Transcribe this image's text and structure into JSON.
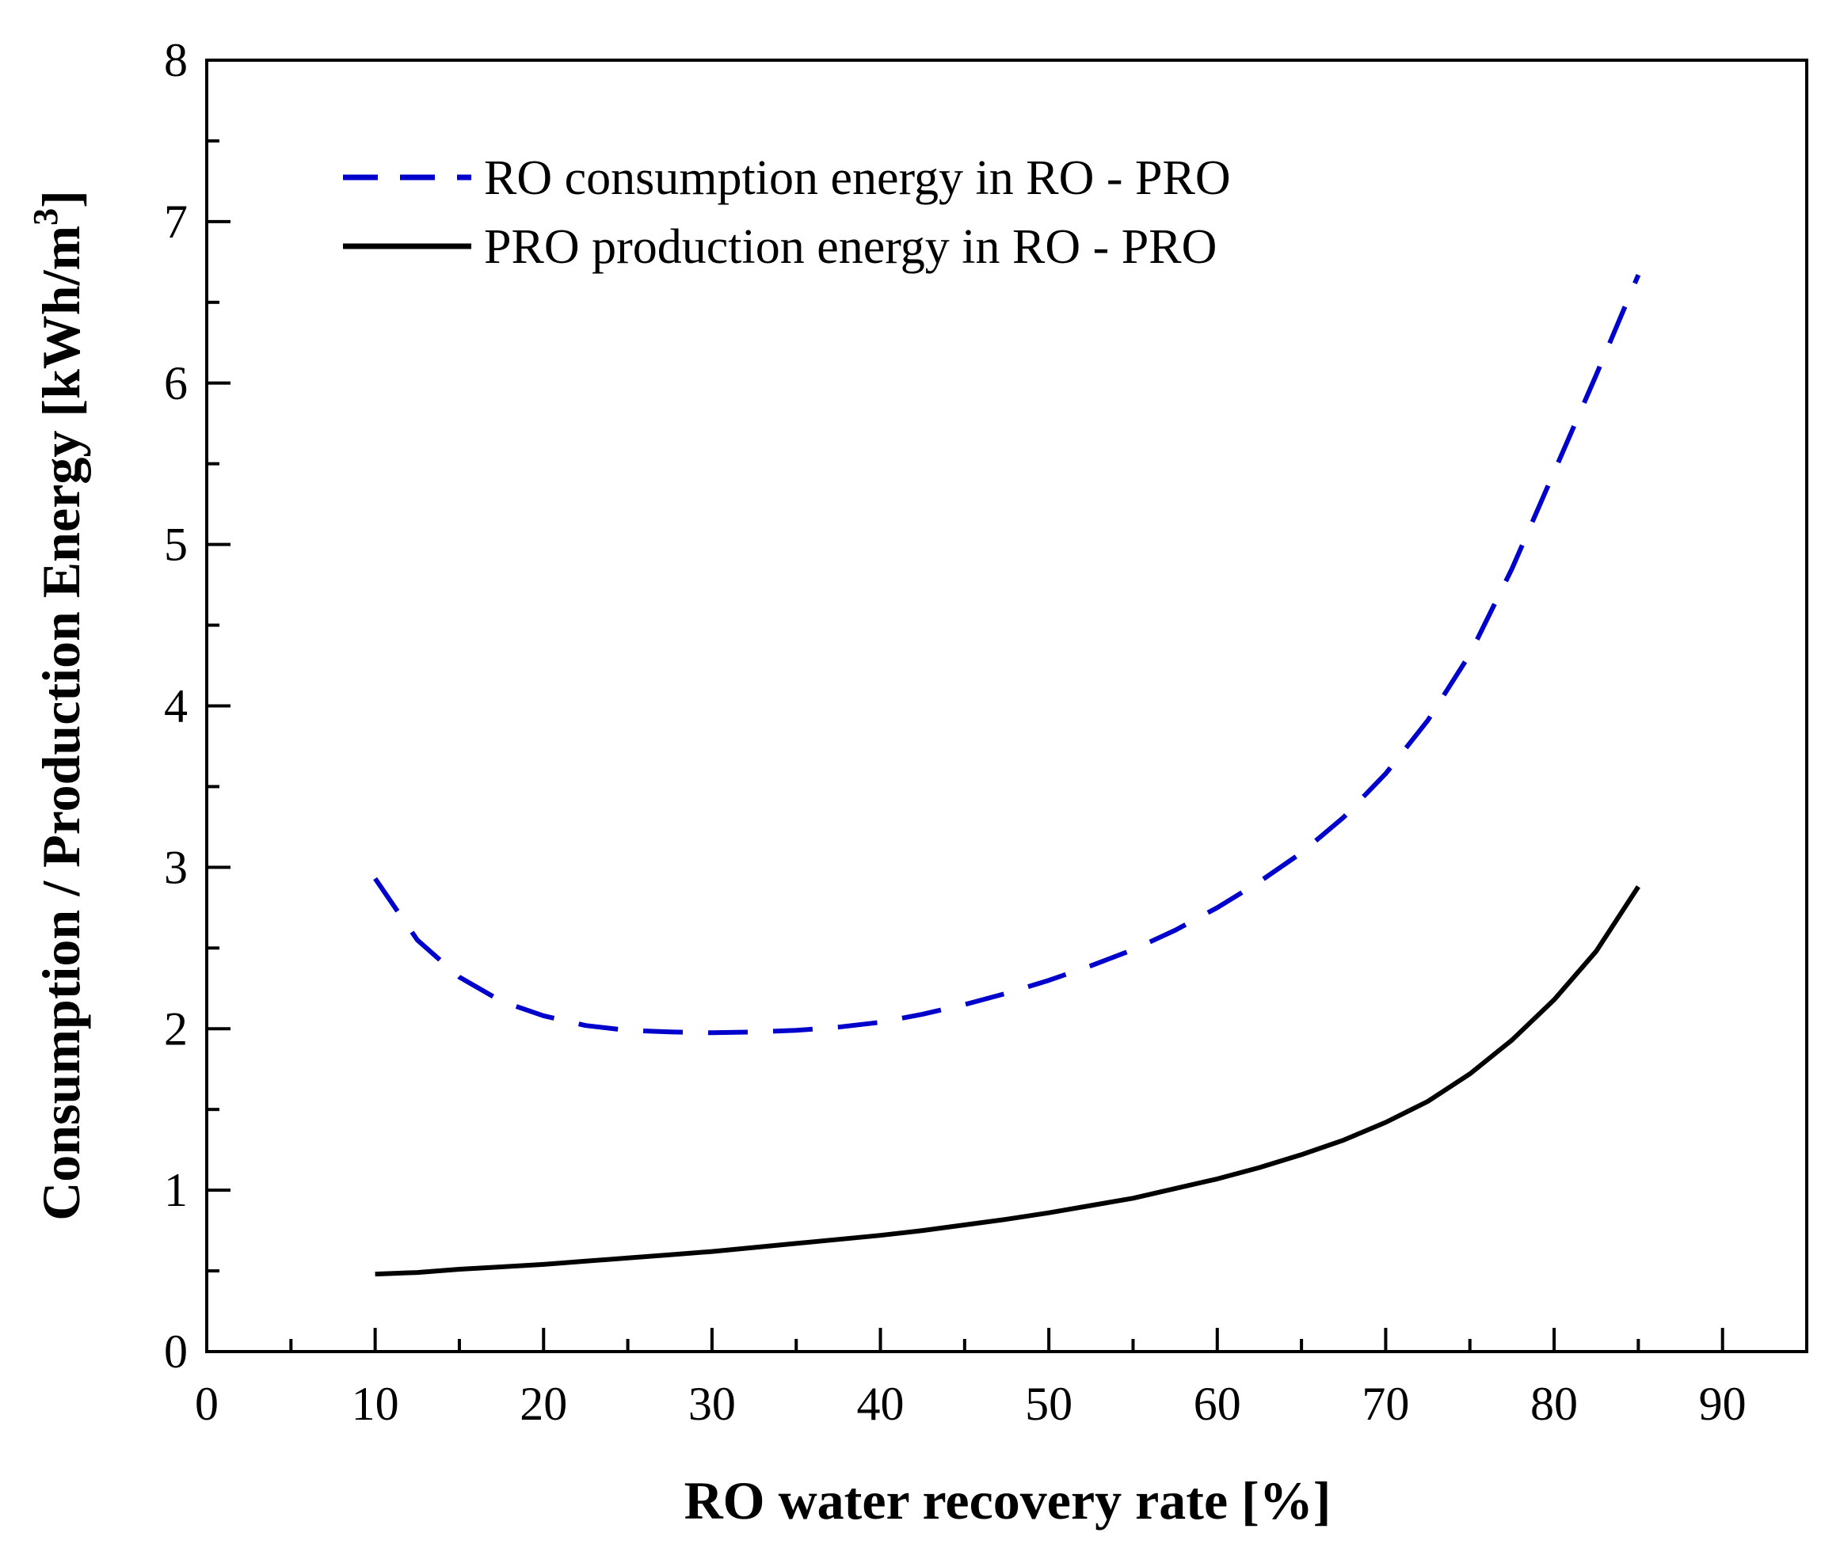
{
  "chart_data": {
    "type": "line",
    "title": "",
    "xlabel": "RO  water recovery rate [%]",
    "ylabel": "Consumption / Production Energy [kWh/m",
    "ylabel_superscript": "3",
    "ylabel_close": "]",
    "xlim": [
      0,
      95
    ],
    "ylim": [
      0,
      8
    ],
    "xticks": [
      "0",
      "10",
      "20",
      "30",
      "40",
      "50",
      "60",
      "70",
      "80",
      "90"
    ],
    "yticks": [
      "0",
      "1",
      "2",
      "3",
      "4",
      "5",
      "6",
      "7",
      "8"
    ],
    "grid": false,
    "legend_position": "top-left",
    "series": [
      {
        "name": "RO consumption energy in RO - PRO",
        "style": "dashed",
        "color": "#0000cc",
        "x": [
          10,
          12.5,
          15,
          17.5,
          20,
          22.5,
          25,
          27.5,
          30,
          32.5,
          35,
          37.5,
          40,
          42.5,
          45,
          47.5,
          50,
          52.5,
          55,
          57.5,
          60,
          62.5,
          65,
          67.5,
          70,
          72.5,
          75,
          77.5,
          80,
          82.5,
          85
        ],
        "y": [
          2.93,
          2.55,
          2.32,
          2.17,
          2.08,
          2.02,
          1.99,
          1.98,
          1.975,
          1.98,
          1.99,
          2.01,
          2.04,
          2.09,
          2.15,
          2.22,
          2.3,
          2.39,
          2.49,
          2.61,
          2.75,
          2.91,
          3.09,
          3.31,
          3.58,
          3.91,
          4.32,
          4.85,
          5.45,
          6.05,
          6.67
        ]
      },
      {
        "name": "PRO production energy in RO - PRO",
        "style": "solid",
        "color": "#000000",
        "x": [
          10,
          12.5,
          15,
          17.5,
          20,
          22.5,
          25,
          27.5,
          30,
          32.5,
          35,
          37.5,
          40,
          42.5,
          45,
          47.5,
          50,
          52.5,
          55,
          57.5,
          60,
          62.5,
          65,
          67.5,
          70,
          72.5,
          75,
          77.5,
          80,
          82.5,
          85
        ],
        "y": [
          0.48,
          0.49,
          0.51,
          0.525,
          0.54,
          0.56,
          0.58,
          0.6,
          0.62,
          0.645,
          0.67,
          0.695,
          0.72,
          0.75,
          0.785,
          0.82,
          0.86,
          0.905,
          0.95,
          1.01,
          1.07,
          1.14,
          1.22,
          1.31,
          1.42,
          1.55,
          1.72,
          1.93,
          2.18,
          2.48,
          2.88
        ]
      }
    ]
  }
}
